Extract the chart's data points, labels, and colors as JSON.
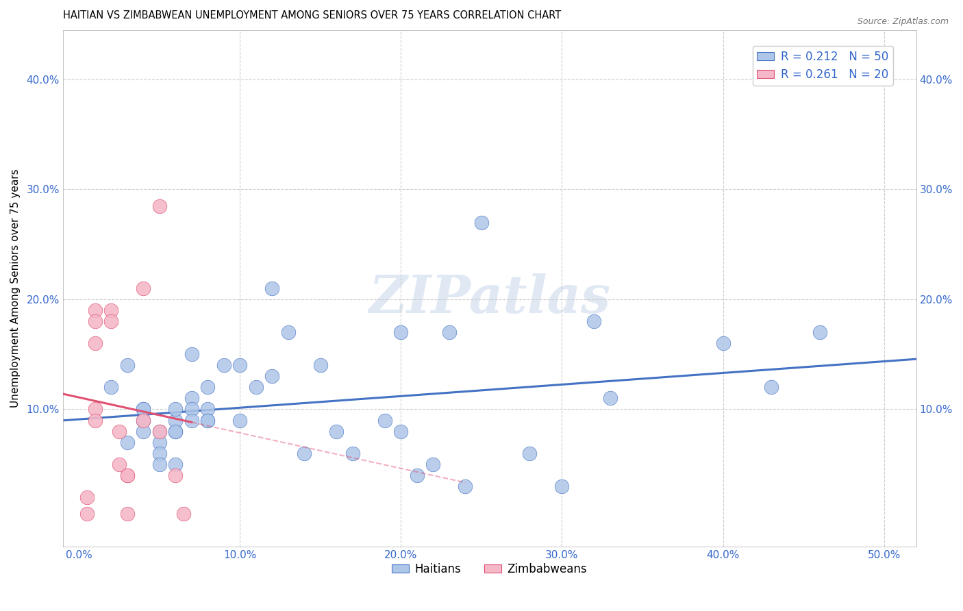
{
  "title": "HAITIAN VS ZIMBABWEAN UNEMPLOYMENT AMONG SENIORS OVER 75 YEARS CORRELATION CHART",
  "source": "Source: ZipAtlas.com",
  "ylabel": "Unemployment Among Seniors over 75 years",
  "ylabel_ticks": [
    0.0,
    0.1,
    0.2,
    0.3,
    0.4
  ],
  "ylabel_labels": [
    "",
    "10.0%",
    "20.0%",
    "30.0%",
    "40.0%"
  ],
  "xlabel_ticks": [
    0.0,
    0.1,
    0.2,
    0.3,
    0.4,
    0.5
  ],
  "xlabel_labels": [
    "0.0%",
    "10.0%",
    "20.0%",
    "30.0%",
    "40.0%",
    "50.0%"
  ],
  "xlim": [
    -0.01,
    0.52
  ],
  "ylim": [
    -0.025,
    0.445
  ],
  "watermark": "ZIPatlas",
  "legend_R_labels": [
    "R = 0.212   N = 50",
    "R = 0.261   N = 20"
  ],
  "haitian_color_face": "#aec6e8",
  "haitian_color_edge": "#4472c4",
  "haitian_line_color": "#4472c4",
  "zimbabwean_color_face": "#f4b8c8",
  "zimbabwean_color_edge": "#e05070",
  "zimbabwean_line_color": "#e05070",
  "haitian_x": [
    0.02,
    0.03,
    0.03,
    0.04,
    0.04,
    0.04,
    0.04,
    0.05,
    0.05,
    0.05,
    0.05,
    0.06,
    0.06,
    0.06,
    0.06,
    0.06,
    0.07,
    0.07,
    0.07,
    0.07,
    0.08,
    0.08,
    0.08,
    0.08,
    0.09,
    0.1,
    0.1,
    0.11,
    0.12,
    0.12,
    0.13,
    0.14,
    0.15,
    0.16,
    0.17,
    0.19,
    0.2,
    0.2,
    0.21,
    0.22,
    0.23,
    0.24,
    0.25,
    0.28,
    0.3,
    0.32,
    0.33,
    0.4,
    0.43,
    0.46
  ],
  "haitian_y": [
    0.12,
    0.14,
    0.07,
    0.1,
    0.1,
    0.09,
    0.08,
    0.08,
    0.07,
    0.06,
    0.05,
    0.08,
    0.09,
    0.1,
    0.08,
    0.05,
    0.15,
    0.11,
    0.1,
    0.09,
    0.1,
    0.09,
    0.12,
    0.09,
    0.14,
    0.14,
    0.09,
    0.12,
    0.21,
    0.13,
    0.17,
    0.06,
    0.14,
    0.08,
    0.06,
    0.09,
    0.08,
    0.17,
    0.04,
    0.05,
    0.17,
    0.03,
    0.27,
    0.06,
    0.03,
    0.18,
    0.11,
    0.16,
    0.12,
    0.17
  ],
  "zimbabwean_x": [
    0.005,
    0.005,
    0.01,
    0.01,
    0.01,
    0.01,
    0.01,
    0.02,
    0.02,
    0.025,
    0.025,
    0.03,
    0.03,
    0.03,
    0.04,
    0.04,
    0.05,
    0.05,
    0.06,
    0.065
  ],
  "zimbabwean_y": [
    0.02,
    0.005,
    0.19,
    0.18,
    0.16,
    0.1,
    0.09,
    0.19,
    0.18,
    0.08,
    0.05,
    0.04,
    0.04,
    0.005,
    0.21,
    0.09,
    0.285,
    0.08,
    0.04,
    0.005
  ]
}
